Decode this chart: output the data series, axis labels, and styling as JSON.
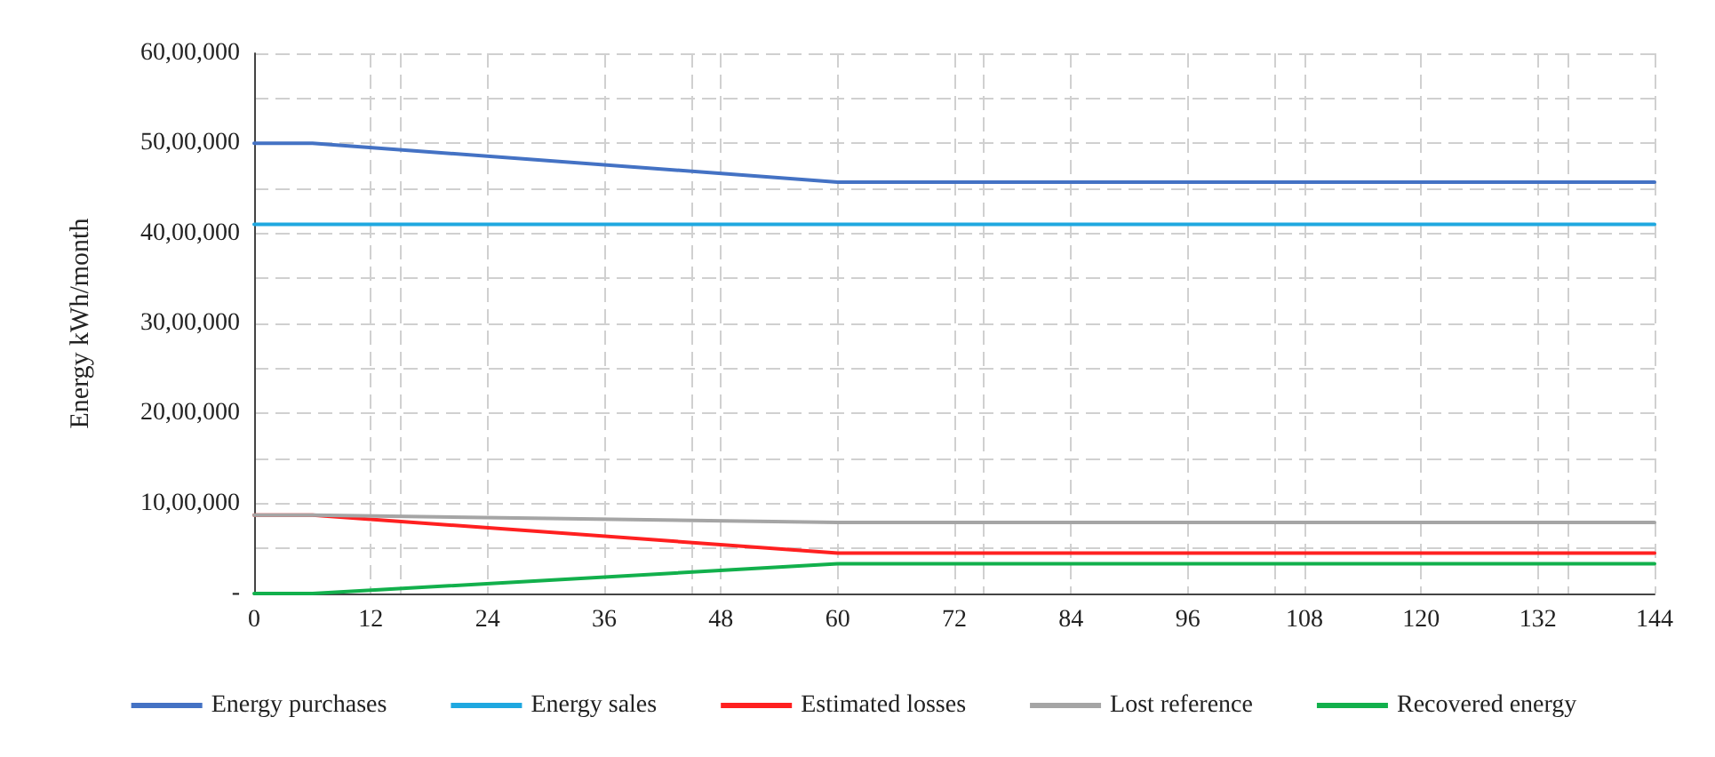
{
  "chart_data": {
    "type": "line",
    "ylabel": "Energy kWh/month",
    "x": [
      0,
      6,
      60,
      144
    ],
    "series": [
      {
        "name": "Energy purchases",
        "color": "#4472c4",
        "values": [
          5000000,
          5000000,
          4570000,
          4570000
        ]
      },
      {
        "name": "Energy sales",
        "color": "#1fa8e0",
        "values": [
          4100000,
          4100000,
          4100000,
          4100000
        ]
      },
      {
        "name": "Estimated losses",
        "color": "#ff2020",
        "values": [
          870000,
          870000,
          450000,
          450000
        ]
      },
      {
        "name": "Lost reference",
        "color": "#a5a5a5",
        "values": [
          870000,
          870000,
          790000,
          790000
        ]
      },
      {
        "name": "Recovered energy",
        "color": "#12b04c",
        "values": [
          0,
          0,
          330000,
          330000
        ]
      }
    ],
    "xlim": [
      0,
      144
    ],
    "xticks": [
      0,
      12,
      24,
      36,
      48,
      60,
      72,
      84,
      96,
      108,
      120,
      132,
      144
    ],
    "ylim": [
      0,
      6000000
    ],
    "yticks": [
      {
        "value": 0,
        "label": "-"
      },
      {
        "value": 1000000,
        "label": "10,00,000"
      },
      {
        "value": 2000000,
        "label": "20,00,000"
      },
      {
        "value": 3000000,
        "label": "30,00,000"
      },
      {
        "value": 4000000,
        "label": "40,00,000"
      },
      {
        "value": 5000000,
        "label": "50,00,000"
      },
      {
        "value": 6000000,
        "label": "60,00,000"
      }
    ],
    "grid": true,
    "legend": "bottom",
    "marker": "none",
    "line_style": "solid"
  }
}
